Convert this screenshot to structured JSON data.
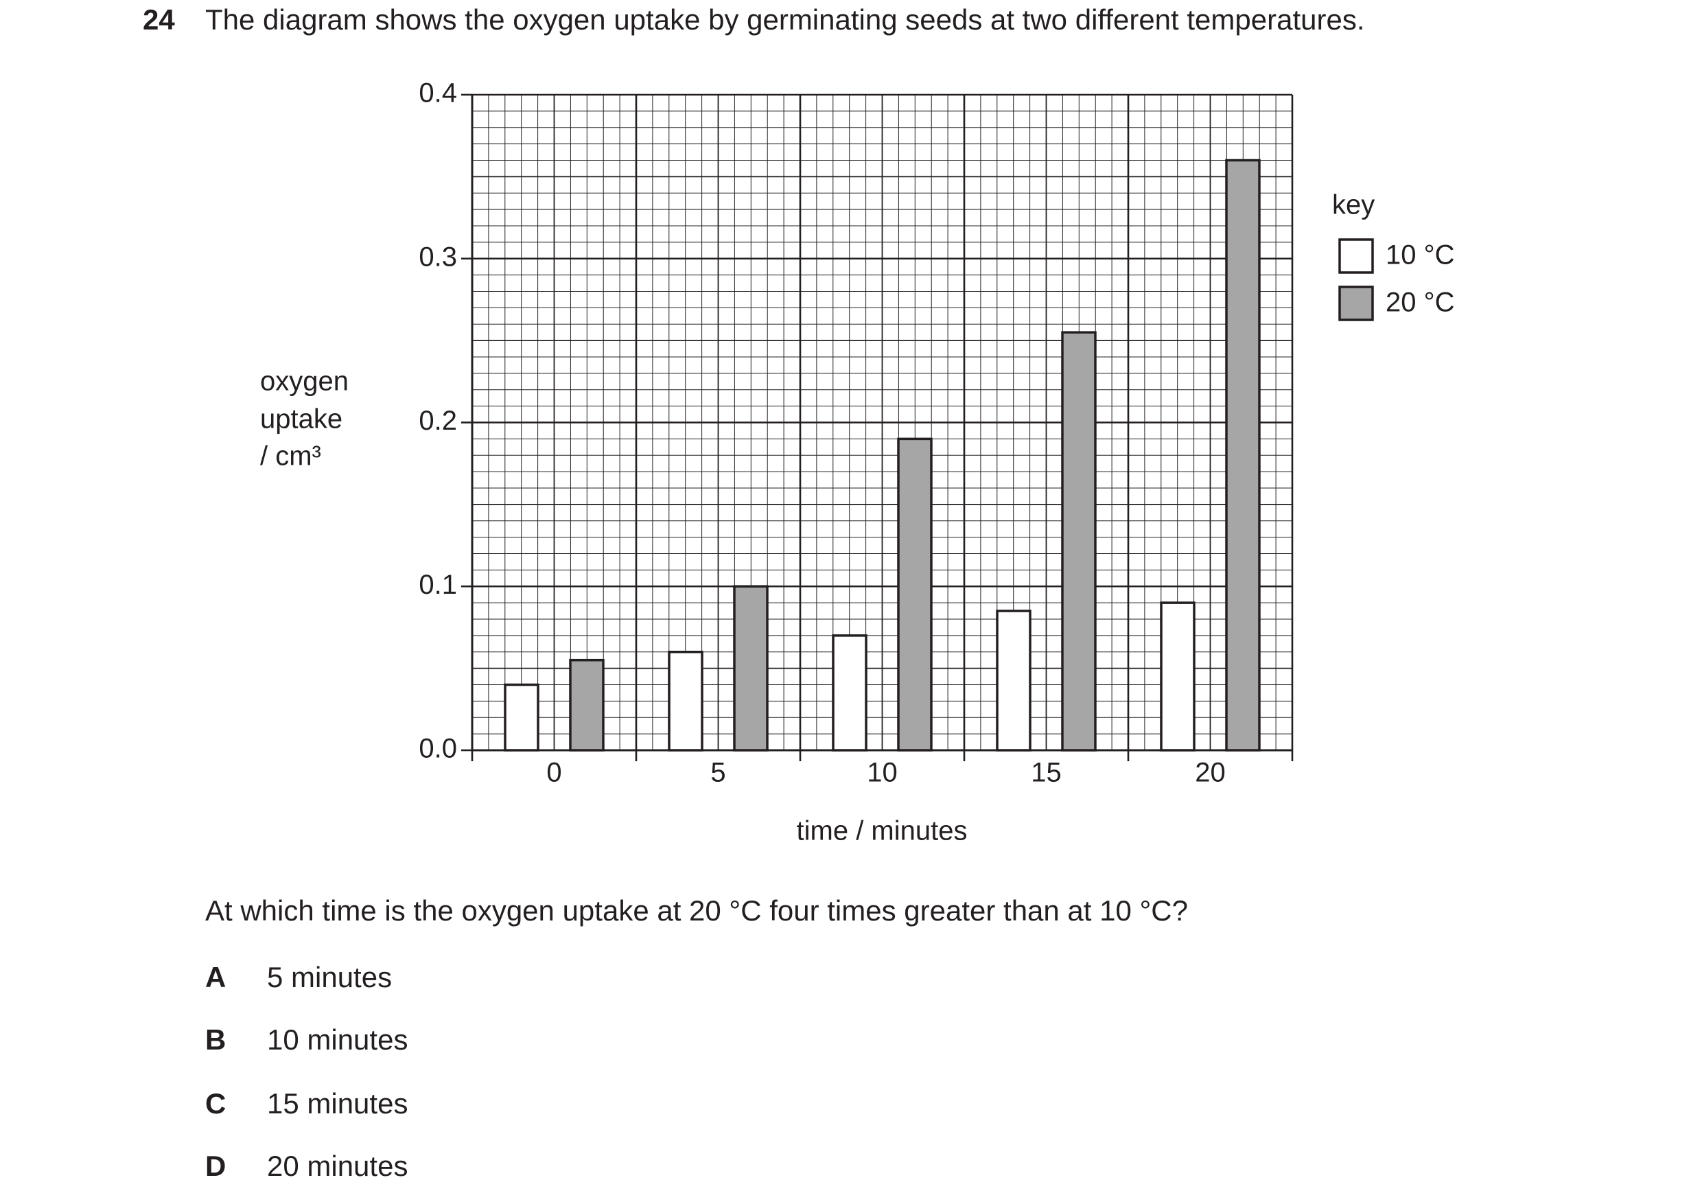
{
  "question": {
    "number": "24",
    "text": "The diagram shows the oxygen uptake by germinating seeds at two different temperatures."
  },
  "chart_data": {
    "type": "bar",
    "y_label": [
      "oxygen",
      "uptake",
      "/ cm³"
    ],
    "x_label": "time / minutes",
    "legend_title": "key",
    "categories": [
      "0",
      "5",
      "10",
      "15",
      "20"
    ],
    "series": [
      {
        "name": "10 °C",
        "color": "#ffffff",
        "values": [
          0.04,
          0.06,
          0.07,
          0.085,
          0.09
        ]
      },
      {
        "name": "20 °C",
        "color": "#a6a6a6",
        "values": [
          0.055,
          0.1,
          0.19,
          0.255,
          0.36
        ]
      }
    ],
    "ylim": [
      0,
      0.4
    ],
    "yticks": [
      {
        "value": 0,
        "label": "0.0"
      },
      0.1,
      0.2,
      0.3,
      0.4
    ],
    "grid": true
  },
  "prompt": "At which time is the oxygen uptake at 20 °C four times greater than at 10 °C?",
  "options": [
    {
      "letter": "A",
      "text": "5 minutes"
    },
    {
      "letter": "B",
      "text": "10 minutes"
    },
    {
      "letter": "C",
      "text": "15 minutes"
    },
    {
      "letter": "D",
      "text": "20 minutes"
    }
  ]
}
